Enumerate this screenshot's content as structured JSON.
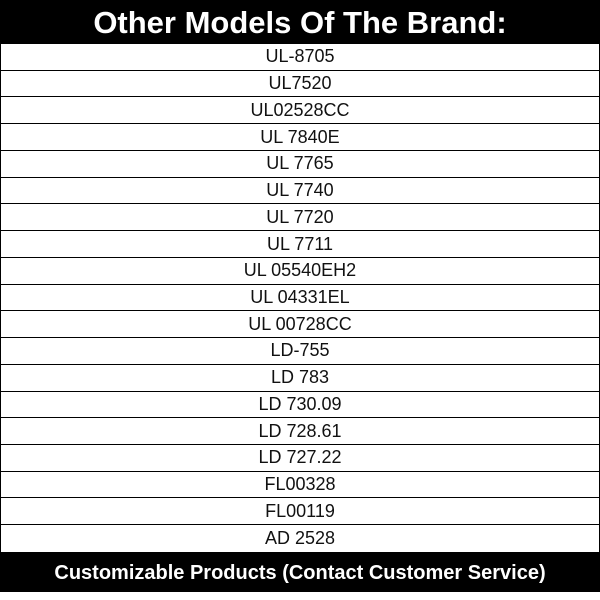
{
  "header": {
    "title": "Other Models Of The Brand:"
  },
  "table": {
    "rows": [
      "UL-8705",
      "UL7520",
      "UL02528CC",
      "UL 7840E",
      "UL 7765",
      "UL 7740",
      "UL 7720",
      "UL 7711",
      "UL 05540EH2",
      "UL 04331EL",
      "UL 00728CC",
      "LD-755",
      "LD 783",
      "LD 730.09",
      "LD 728.61",
      "LD 727.22",
      "FL00328",
      "FL00119",
      "AD 2528"
    ]
  },
  "footer": {
    "text": "Customizable Products (Contact Customer Service)"
  }
}
